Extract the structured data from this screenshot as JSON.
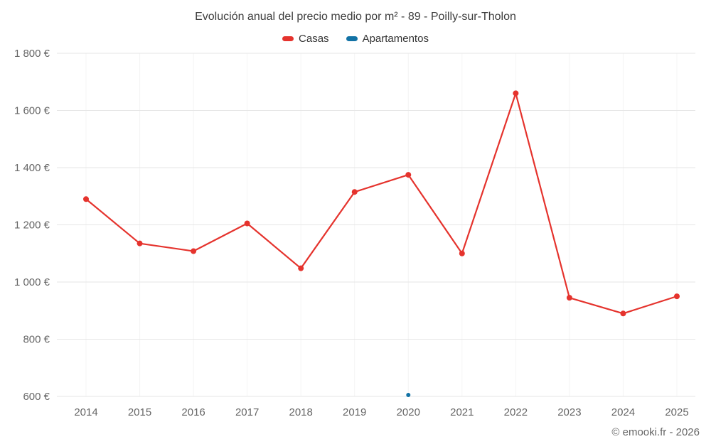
{
  "chart_data": {
    "type": "line",
    "title": "Evolución anual del precio medio por m² - 89 - Poilly-sur-Tholon",
    "categories": [
      "2014",
      "2015",
      "2016",
      "2017",
      "2018",
      "2019",
      "2020",
      "2021",
      "2022",
      "2023",
      "2024",
      "2025"
    ],
    "series": [
      {
        "name": "Casas",
        "color": "#e5332d",
        "marker_radius": 4,
        "values": [
          1290,
          1135,
          1108,
          1205,
          1048,
          1315,
          1375,
          1100,
          1660,
          945,
          890,
          950
        ]
      },
      {
        "name": "Apartamentos",
        "color": "#1272a5",
        "marker_radius": 3,
        "values": [
          null,
          null,
          null,
          null,
          null,
          null,
          605,
          null,
          null,
          null,
          null,
          null
        ]
      }
    ],
    "ylim": [
      600,
      1800
    ],
    "ytick_step": 200,
    "ytick_suffix": " €",
    "grid": true,
    "legend_position": "top",
    "colors": {
      "gridline": "#e6e6e6",
      "vertical_gridline": "#f4f4f4",
      "axis_label": "#666666",
      "title_text": "#3d3d3d",
      "legend_text": "#333333"
    }
  },
  "footer": {
    "credit": "© emooki.fr - 2026"
  }
}
